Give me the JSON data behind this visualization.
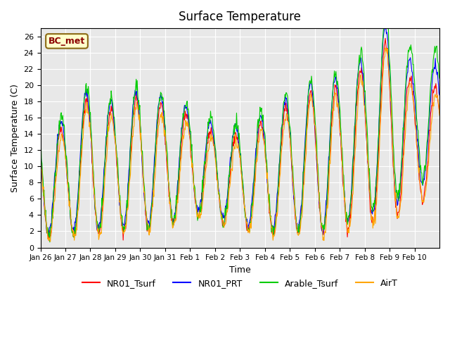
{
  "title": "Surface Temperature",
  "xlabel": "Time",
  "ylabel": "Surface Temperature (C)",
  "ylim": [
    0,
    27
  ],
  "yticks": [
    0,
    2,
    4,
    6,
    8,
    10,
    12,
    14,
    16,
    18,
    20,
    22,
    24,
    26
  ],
  "date_labels": [
    "Jan 26",
    "Jan 27",
    "Jan 28",
    "Jan 29",
    "Jan 30",
    "Jan 31",
    "Feb 1",
    "Feb 2",
    "Feb 3",
    "Feb 4",
    "Feb 5",
    "Feb 6",
    "Feb 7",
    "Feb 8",
    "Feb 9",
    "Feb 10"
  ],
  "series": {
    "NR01_Tsurf": {
      "color": "#ff0000",
      "label": "NR01_Tsurf"
    },
    "NR01_PRT": {
      "color": "#0000ff",
      "label": "NR01_PRT"
    },
    "Arable_Tsurf": {
      "color": "#00cc00",
      "label": "Arable_Tsurf"
    },
    "AirT": {
      "color": "#ffa500",
      "label": "AirT"
    }
  },
  "annotation_text": "BC_met",
  "background_color": "#e8e8e8",
  "grid_color": "#ffffff",
  "day_mins": [
    1.2,
    1.5,
    1.8,
    2.0,
    2.2,
    2.5,
    4.0,
    3.5,
    2.5,
    1.8,
    2.0,
    1.5,
    2.0,
    3.0,
    3.0,
    6.0
  ],
  "day_maxs": [
    15.0,
    14.5,
    19.0,
    16.5,
    18.5,
    17.5,
    16.2,
    14.0,
    14.0,
    15.5,
    17.5,
    19.5,
    19.5,
    22.0,
    26.0,
    20.0
  ]
}
